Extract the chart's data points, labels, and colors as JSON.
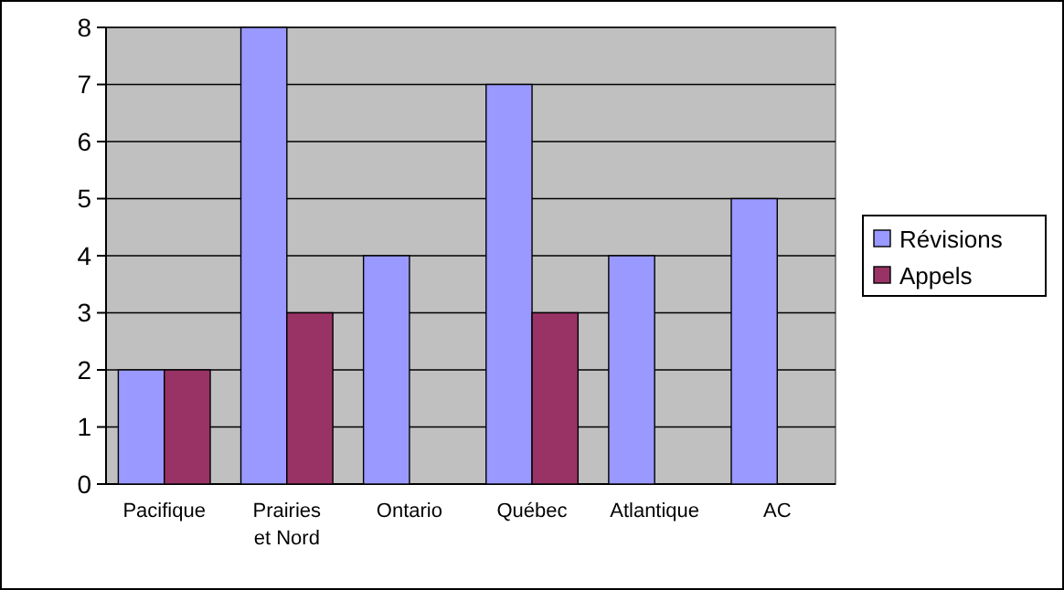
{
  "chart_data": {
    "type": "bar",
    "categories": [
      "Pacifique",
      "Prairies et Nord",
      "Ontario",
      "Québec",
      "Atlantique",
      "AC"
    ],
    "series": [
      {
        "name": "Révisions",
        "color": "#9999ff",
        "values": [
          2,
          8,
          4,
          7,
          4,
          5
        ]
      },
      {
        "name": "Appels",
        "color": "#993366",
        "values": [
          2,
          3,
          0,
          3,
          0,
          0
        ]
      }
    ],
    "ylim": [
      0,
      8
    ],
    "yticks": [
      0,
      1,
      2,
      3,
      4,
      5,
      6,
      7,
      8
    ],
    "grid": "y",
    "legend": "right"
  }
}
